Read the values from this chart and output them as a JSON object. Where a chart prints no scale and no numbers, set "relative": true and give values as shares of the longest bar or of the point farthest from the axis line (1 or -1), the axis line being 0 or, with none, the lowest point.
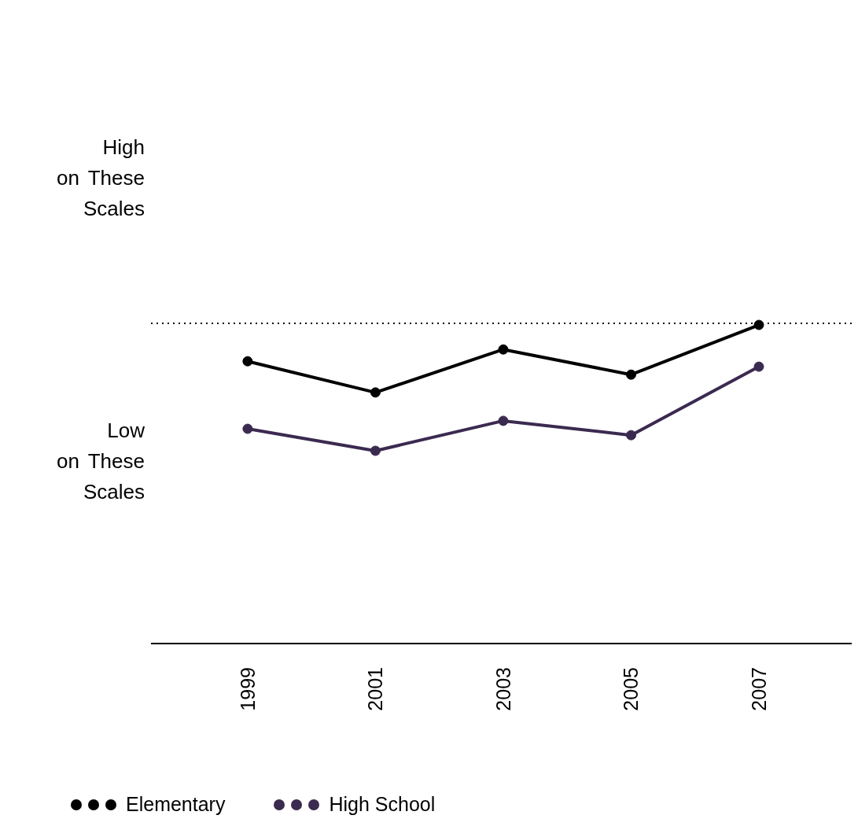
{
  "chart_data": {
    "type": "line",
    "relative": true,
    "categories": [
      "1999",
      "2001",
      "2003",
      "2005",
      "2007"
    ],
    "series": [
      {
        "name": "Elementary",
        "color": "#000000",
        "values": [
          0.886,
          0.788,
          0.923,
          0.844,
          1
        ]
      },
      {
        "name": "High School",
        "color": "#3b2a50",
        "values": [
          0.674,
          0.605,
          0.699,
          0.654,
          0.869
        ]
      }
    ],
    "annotations": [
      "High on These Scales",
      "Low on These Scales"
    ],
    "ref_lines": [
      {
        "axis": "y",
        "value": 1.005,
        "line_style": "dotted",
        "color": "#000000"
      }
    ],
    "marker": "circle",
    "legend": "bottom"
  }
}
